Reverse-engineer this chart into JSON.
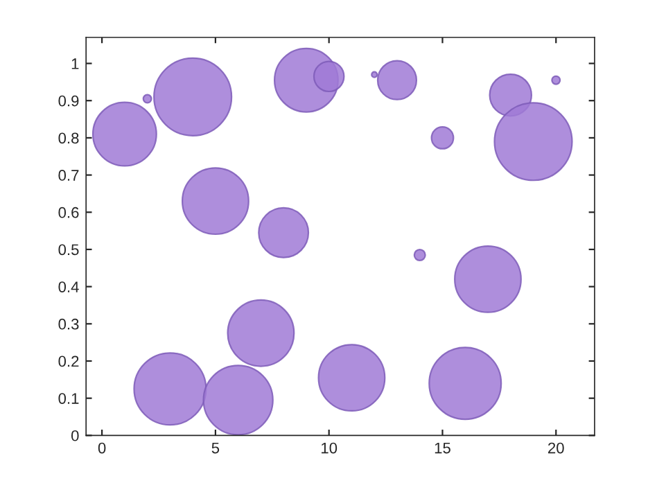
{
  "chart_data": {
    "type": "bubble",
    "x": [
      1,
      2,
      3,
      4,
      5,
      6,
      7,
      8,
      9,
      10,
      11,
      12,
      13,
      14,
      15,
      16,
      17,
      18,
      19,
      20
    ],
    "values": [
      0.81,
      0.905,
      0.125,
      0.91,
      0.63,
      0.095,
      0.275,
      0.545,
      0.955,
      0.965,
      0.155,
      0.97,
      0.955,
      0.485,
      0.8,
      0.14,
      0.42,
      0.915,
      0.79,
      0.955
    ],
    "sizes": [
      0.67,
      0.011,
      0.86,
      1,
      0.73,
      0.8,
      0.73,
      0.41,
      0.67,
      0.15,
      0.73,
      0.005,
      0.25,
      0.02,
      0.08,
      0.86,
      0.73,
      0.29,
      1,
      0.011
    ],
    "color": "#a07ad6",
    "xlim": [
      -0.7,
      21.7
    ],
    "xticks": [
      0,
      5,
      10,
      15,
      20
    ],
    "ylim": [
      0,
      1.07
    ],
    "yticks": [
      0,
      0.1,
      0.2,
      0.3,
      0.4,
      0.5,
      0.6,
      0.7,
      0.8,
      0.9,
      1
    ],
    "grid": false
  }
}
